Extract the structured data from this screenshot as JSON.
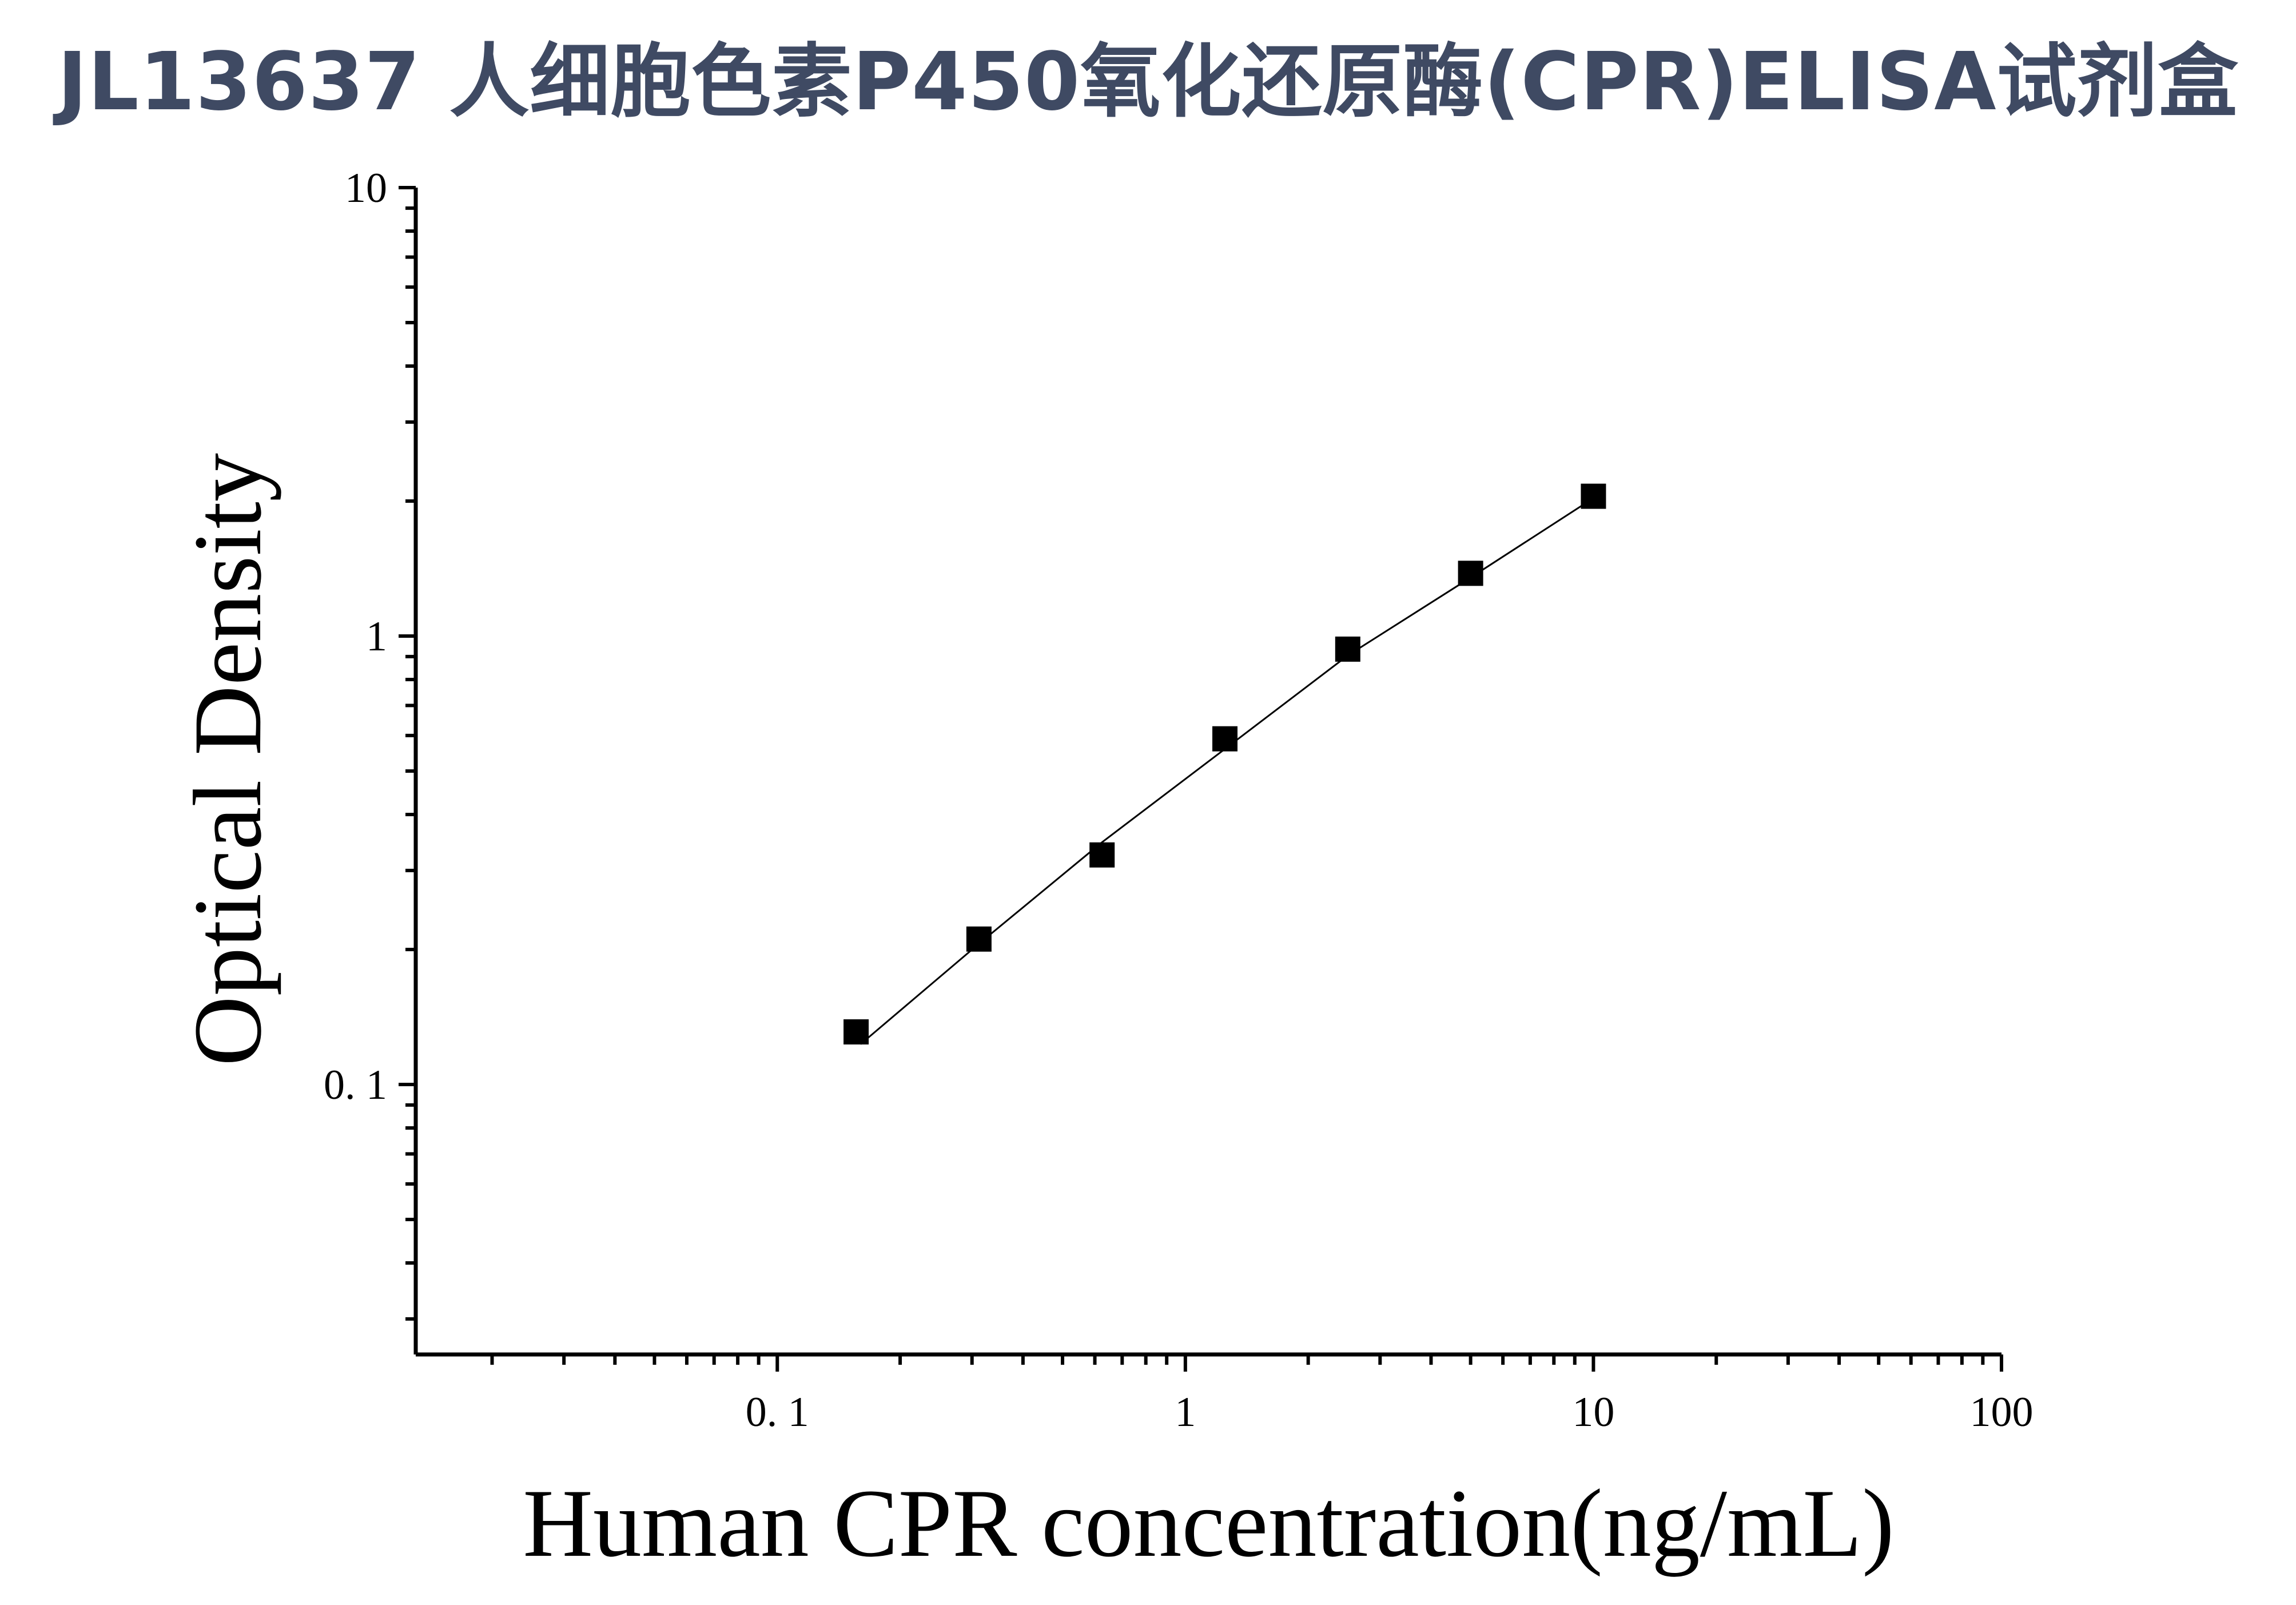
{
  "title": "JL13637 人细胞色素P450氧化还原酶(CPR)ELISA试剂盒",
  "chart_data": {
    "type": "scatter",
    "title": "JL13637 人细胞色素P450氧化还原酶(CPR)ELISA试剂盒",
    "xlabel": "Human CPR concentration(ng/mL)",
    "ylabel": "Optical Density",
    "x_scale": "log",
    "y_scale": "log",
    "xlim": [
      0.013,
      100
    ],
    "ylim": [
      0.025,
      10
    ],
    "x_ticks": [
      {
        "value": 0.1,
        "label": "0. 1"
      },
      {
        "value": 1,
        "label": "1"
      },
      {
        "value": 10,
        "label": "10"
      },
      {
        "value": 100,
        "label": "100"
      }
    ],
    "y_ticks": [
      {
        "value": 0.1,
        "label": "0. 1"
      },
      {
        "value": 1,
        "label": "1"
      },
      {
        "value": 10,
        "label": "10"
      }
    ],
    "grid": false,
    "legend": "none",
    "series": [
      {
        "marker": "square",
        "color": "#000000",
        "x": [
          0.156,
          0.312,
          0.625,
          1.25,
          2.5,
          5,
          10
        ],
        "y": [
          0.131,
          0.211,
          0.325,
          0.59,
          0.935,
          1.38,
          2.05
        ]
      }
    ],
    "fit": {
      "type": "line",
      "color": "#000000",
      "x": [
        0.16,
        0.312,
        0.625,
        1.25,
        2.5,
        5,
        10
      ],
      "y": [
        0.123,
        0.206,
        0.347,
        0.56,
        0.905,
        1.35,
        2.03
      ]
    }
  }
}
